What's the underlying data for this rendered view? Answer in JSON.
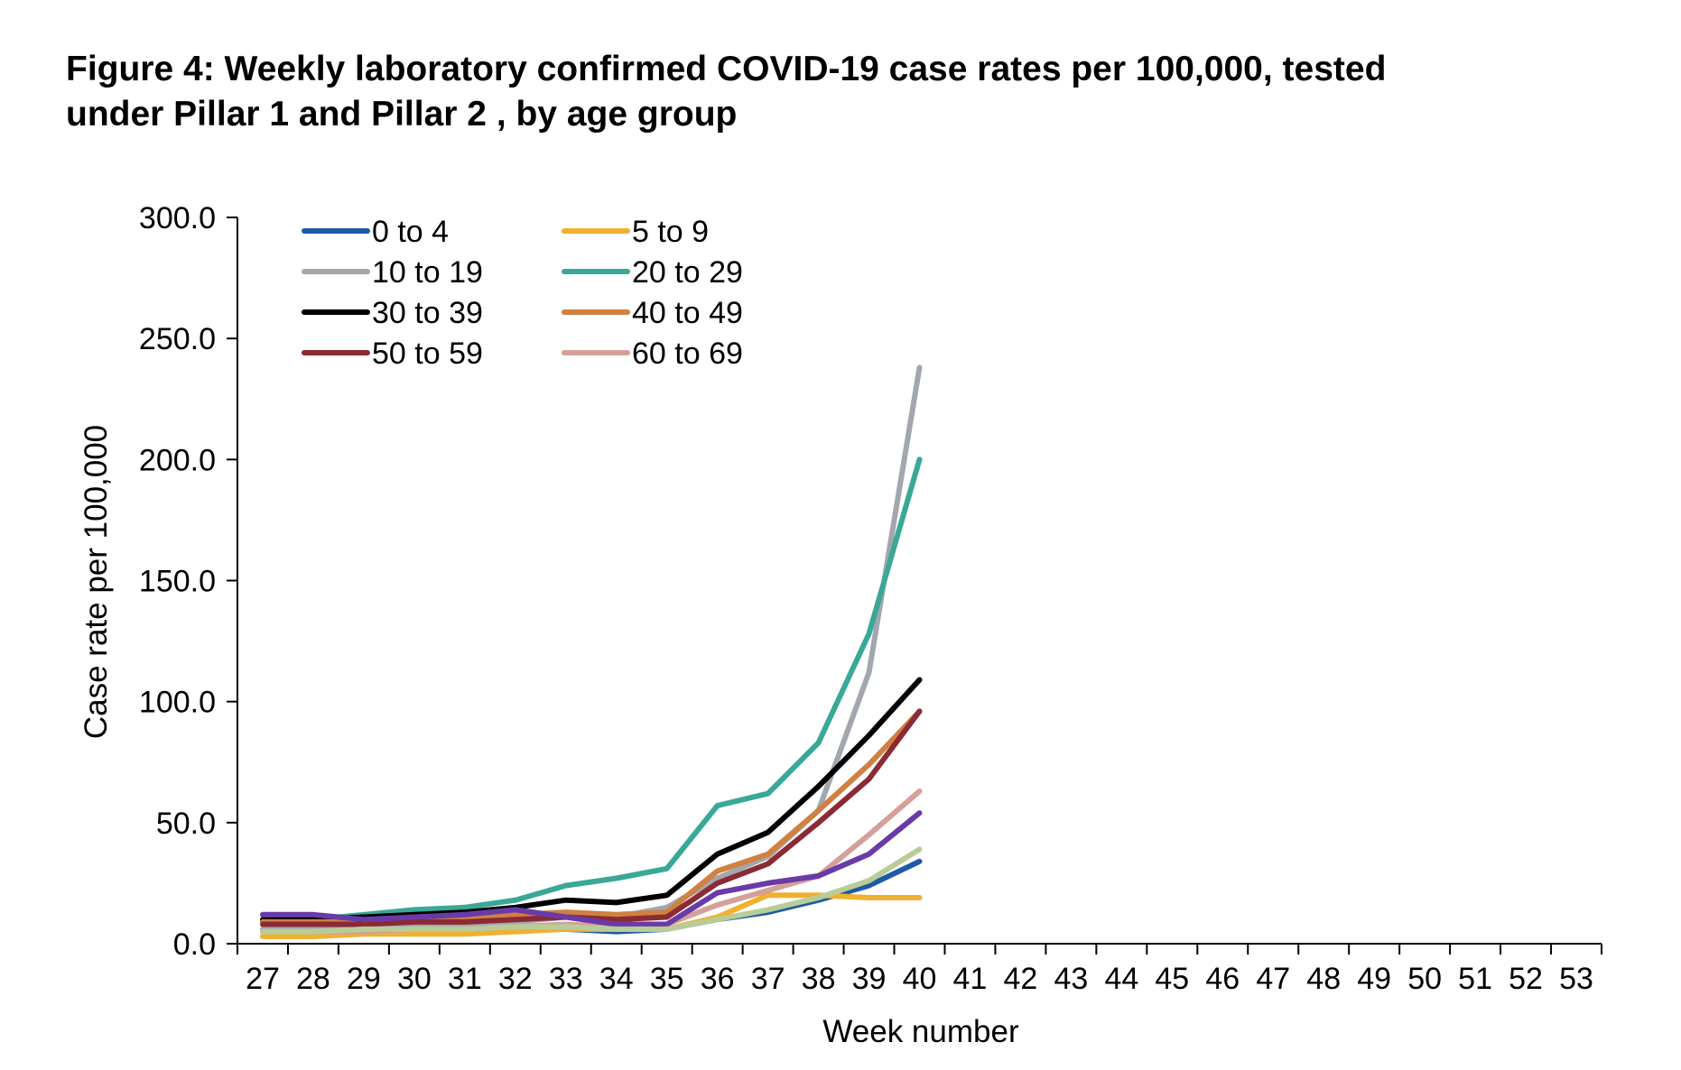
{
  "title_lines": [
    "Figure 4: Weekly laboratory confirmed COVID-19 case rates per 100,000, tested",
    "under Pillar 1 and Pillar 2 , by age group"
  ],
  "chart_data": {
    "type": "line",
    "xlabel": "Week number",
    "ylabel": "Case rate per 100,000",
    "ylim": [
      0,
      300
    ],
    "y_ticks": [
      "0.0",
      "50.0",
      "100.0",
      "150.0",
      "200.0",
      "250.0",
      "300.0"
    ],
    "x_categories": [
      "27",
      "28",
      "29",
      "30",
      "31",
      "32",
      "33",
      "34",
      "35",
      "36",
      "37",
      "38",
      "39",
      "40",
      "41",
      "42",
      "43",
      "44",
      "45",
      "46",
      "47",
      "48",
      "49",
      "50",
      "51",
      "52",
      "53"
    ],
    "legend_position": "top-left",
    "grid": false,
    "series": [
      {
        "name": "0 to 4",
        "color": "#1f5aa6",
        "values": [
          6,
          6,
          6,
          6,
          6,
          7,
          6,
          5,
          6,
          10,
          13,
          18,
          24,
          34
        ]
      },
      {
        "name": "5 to 9",
        "color": "#f0b030",
        "values": [
          3,
          3,
          4,
          4,
          4,
          5,
          6,
          6,
          6,
          11,
          20,
          20,
          19,
          19
        ]
      },
      {
        "name": "10 to 19",
        "color": "#a2a7ae",
        "values": [
          6,
          6,
          7,
          7,
          8,
          9,
          11,
          11,
          15,
          27,
          36,
          55,
          112,
          238
        ]
      },
      {
        "name": "20 to 29",
        "color": "#3aa896",
        "values": [
          9,
          10,
          12,
          14,
          15,
          18,
          24,
          27,
          31,
          57,
          62,
          83,
          128,
          200
        ]
      },
      {
        "name": "30 to 39",
        "color": "#000000",
        "values": [
          10,
          10,
          11,
          12,
          13,
          15,
          18,
          17,
          20,
          37,
          46,
          65,
          86,
          109
        ]
      },
      {
        "name": "40 to 49",
        "color": "#d08040",
        "values": [
          9,
          9,
          9,
          10,
          11,
          12,
          13,
          12,
          13,
          30,
          37,
          55,
          74,
          96
        ]
      },
      {
        "name": "50 to 59",
        "color": "#8b2a35",
        "values": [
          8,
          8,
          8,
          9,
          9,
          10,
          11,
          10,
          11,
          25,
          33,
          50,
          68,
          96
        ]
      },
      {
        "name": "60 to 69",
        "color": "#d4a09a",
        "values": [
          5,
          5,
          5,
          6,
          6,
          7,
          8,
          7,
          8,
          16,
          22,
          28,
          45,
          63
        ]
      },
      {
        "color": "#6a3aa8",
        "values": [
          12,
          12,
          10,
          11,
          12,
          14,
          11,
          8,
          8,
          21,
          25,
          28,
          37,
          54
        ]
      },
      {
        "color": "#b8cc98",
        "values": [
          5,
          5,
          6,
          6,
          6,
          7,
          7,
          6,
          6,
          10,
          14,
          19,
          26,
          39
        ]
      }
    ]
  }
}
